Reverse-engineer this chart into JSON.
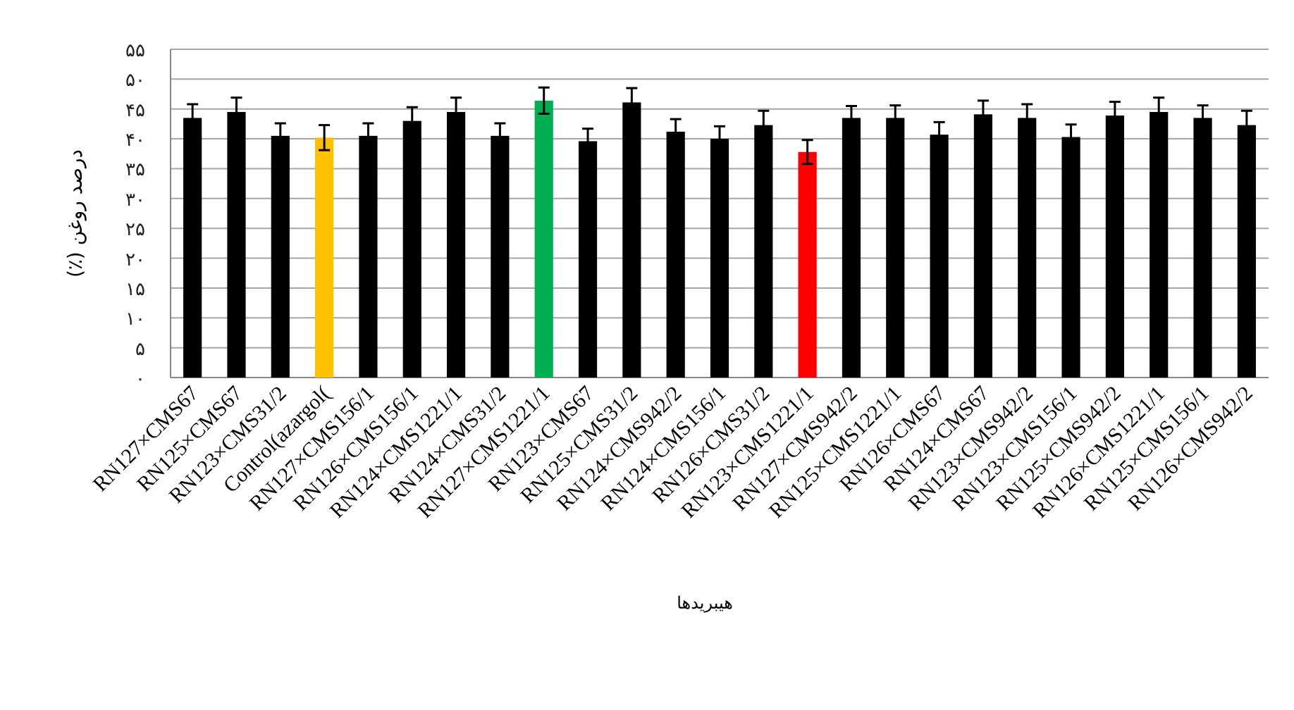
{
  "chart_data": {
    "type": "bar",
    "xlabel": "هیبریدها",
    "ylabel": "درصد روغن (٪)",
    "categories": [
      "RN127×CMS67",
      "RN125×CMS67",
      "RN123×CMS31/2",
      "Control(azargol(",
      "RN127×CMS156/1",
      "RN126×CMS156/1",
      "RN124×CMS1221/1",
      "RN124×CMS31/2",
      "RN127×CMS1221/1",
      "RN123×CMS67",
      "RN125×CMS31/2",
      "RN124×CMS942/2",
      "RN124×CMS156/1",
      "RN126×CMS31/2",
      "RN123×CMS1221/1",
      "RN127×CMS942/2",
      "RN125×CMS1221/1",
      "RN126×CMS67",
      "RN124×CMS67",
      "RN123×CMS942/2",
      "RN123×CMS156/1",
      "RN125×CMS942/2",
      "RN126×CMS1221/1",
      "RN125×CMS156/1",
      "RN126×CMS942/2"
    ],
    "values": [
      43.5,
      44.5,
      40.5,
      40.2,
      40.5,
      43.0,
      44.5,
      40.5,
      46.4,
      39.6,
      46.1,
      41.2,
      40.0,
      42.3,
      37.8,
      43.5,
      43.5,
      40.7,
      44.1,
      43.5,
      40.3,
      43.9,
      44.5,
      43.5,
      42.3
    ],
    "errors": [
      2.3,
      2.4,
      2.1,
      2.1,
      2.1,
      2.3,
      2.4,
      2.1,
      2.2,
      2.1,
      2.4,
      2.1,
      2.1,
      2.4,
      2.0,
      2.0,
      2.1,
      2.1,
      2.3,
      2.3,
      2.1,
      2.3,
      2.4,
      2.1,
      2.4
    ],
    "colors": [
      "#000000",
      "#000000",
      "#000000",
      "#ffc000",
      "#000000",
      "#000000",
      "#000000",
      "#000000",
      "#00b050",
      "#000000",
      "#000000",
      "#000000",
      "#000000",
      "#000000",
      "#ff0000",
      "#000000",
      "#000000",
      "#000000",
      "#000000",
      "#000000",
      "#000000",
      "#000000",
      "#000000",
      "#000000",
      "#000000"
    ],
    "ylim": [
      0,
      55
    ],
    "yticks": [
      {
        "value": 0,
        "label": "۰"
      },
      {
        "value": 5,
        "label": "۵"
      },
      {
        "value": 10,
        "label": "۱۰"
      },
      {
        "value": 15,
        "label": "۱۵"
      },
      {
        "value": 20,
        "label": "۲۰"
      },
      {
        "value": 25,
        "label": "۲۵"
      },
      {
        "value": 30,
        "label": "۳۰"
      },
      {
        "value": 35,
        "label": "۳۵"
      },
      {
        "value": 40,
        "label": "۴۰"
      },
      {
        "value": 45,
        "label": "۴۵"
      },
      {
        "value": 50,
        "label": "۵۰"
      },
      {
        "value": 55,
        "label": "۵۵"
      }
    ],
    "grid": "y"
  }
}
